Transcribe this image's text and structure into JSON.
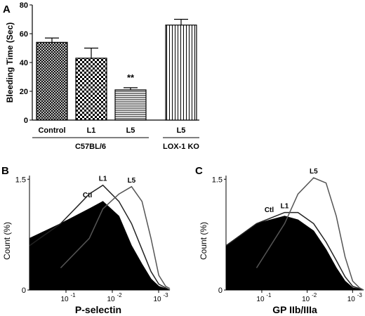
{
  "chart_data": [
    {
      "panel": "A",
      "type": "bar",
      "ylabel": "Bleeding Time (Sec)",
      "ylim": [
        0,
        80
      ],
      "yticks": [
        0,
        20,
        40,
        60,
        80
      ],
      "categories": [
        "Control",
        "L1",
        "L5",
        "L5"
      ],
      "values": [
        54,
        43,
        21,
        66
      ],
      "errors": [
        3,
        7,
        1.5,
        4
      ],
      "patterns": [
        "crosshatch",
        "checker",
        "horizontal-lines",
        "vertical-lines"
      ],
      "annotations": [
        {
          "category_index": 2,
          "text": "**"
        }
      ],
      "groups": [
        {
          "label": "C57BL/6",
          "categories": [
            0,
            1,
            2
          ]
        },
        {
          "label": "LOX-1 KO",
          "categories": [
            3
          ]
        }
      ]
    },
    {
      "panel": "B",
      "type": "area",
      "ylabel": "Count (%)",
      "xlabel": "P-selectin",
      "x_scale": "log",
      "xlim": [
        0.03,
        0.3
      ],
      "xticks": [
        {
          "value": 0.1,
          "label": "10",
          "exp": "-1"
        },
        {
          "value": 0.01,
          "label": "10",
          "exp": "-2"
        },
        {
          "value": 0.001,
          "label": "10",
          "exp": "-3"
        }
      ],
      "ylim": [
        0,
        1.55
      ],
      "yticks": [
        {
          "value": 0,
          "label": "0"
        },
        {
          "value": 1.5,
          "label": "1.5"
        }
      ],
      "series": [
        {
          "name": "Ctl",
          "style": "filled-black",
          "x": [
            0.03,
            0.05,
            0.08,
            0.1,
            0.13,
            0.16,
            0.19,
            0.22,
            0.25,
            0.3
          ],
          "y": [
            0.7,
            0.9,
            1.1,
            1.2,
            1.0,
            0.6,
            0.35,
            0.15,
            0.05,
            0.0
          ]
        },
        {
          "name": "L1",
          "style": "outline",
          "x": [
            0.03,
            0.05,
            0.08,
            0.1,
            0.13,
            0.16,
            0.19,
            0.22,
            0.25,
            0.3
          ],
          "y": [
            0.6,
            0.9,
            1.3,
            1.42,
            1.2,
            0.9,
            0.55,
            0.25,
            0.08,
            0.0
          ]
        },
        {
          "name": "L5",
          "style": "outline",
          "x": [
            0.05,
            0.08,
            0.1,
            0.13,
            0.16,
            0.19,
            0.22,
            0.25,
            0.28,
            0.3
          ],
          "y": [
            0.3,
            0.7,
            1.1,
            1.3,
            1.4,
            1.2,
            0.7,
            0.2,
            0.05,
            0.02
          ]
        }
      ]
    },
    {
      "panel": "C",
      "type": "area",
      "ylabel": "Count (%)",
      "xlabel": "GP IIb/IIIa",
      "x_scale": "log",
      "xlim": [
        0.03,
        0.3
      ],
      "xticks": [
        {
          "value": 0.1,
          "label": "10",
          "exp": "-1"
        },
        {
          "value": 0.01,
          "label": "10",
          "exp": "-2"
        },
        {
          "value": 0.001,
          "label": "10",
          "exp": "-3"
        }
      ],
      "ylim": [
        0,
        1.55
      ],
      "yticks": [
        {
          "value": 0,
          "label": "0"
        },
        {
          "value": 1.5,
          "label": "1.5"
        }
      ],
      "series": [
        {
          "name": "Ctl",
          "style": "filled-black",
          "x": [
            0.03,
            0.05,
            0.08,
            0.1,
            0.13,
            0.16,
            0.19,
            0.22,
            0.25,
            0.3
          ],
          "y": [
            0.6,
            0.9,
            1.0,
            0.95,
            0.8,
            0.55,
            0.3,
            0.12,
            0.03,
            0.0
          ]
        },
        {
          "name": "L1",
          "style": "outline",
          "x": [
            0.03,
            0.05,
            0.08,
            0.1,
            0.13,
            0.16,
            0.19,
            0.22,
            0.25,
            0.3
          ],
          "y": [
            0.6,
            0.9,
            1.05,
            1.05,
            0.9,
            0.65,
            0.4,
            0.18,
            0.05,
            0.0
          ]
        },
        {
          "name": "L5",
          "style": "outline",
          "x": [
            0.05,
            0.08,
            0.1,
            0.13,
            0.16,
            0.19,
            0.22,
            0.25,
            0.28,
            0.3
          ],
          "y": [
            0.3,
            0.9,
            1.3,
            1.52,
            1.45,
            1.0,
            0.45,
            0.12,
            0.03,
            0.0
          ]
        }
      ]
    }
  ],
  "panel_letters": {
    "a": "A",
    "b": "B",
    "c": "C"
  }
}
